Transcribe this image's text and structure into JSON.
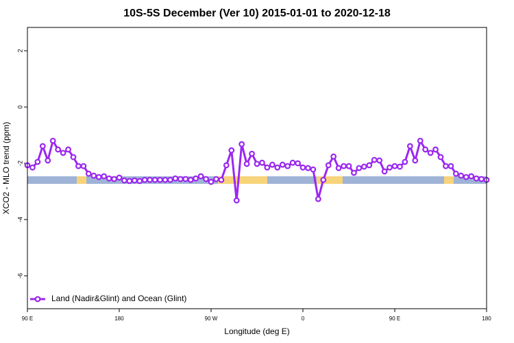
{
  "chart_data": {
    "type": "line",
    "title": "10S-5S December (Ver 10)   2015-01-01 to 2020-12-18",
    "xlabel": "Longitude (deg E)",
    "ylabel": "XCO2 - MLO trend (ppm)",
    "x": [
      90,
      95,
      100,
      105,
      110,
      115,
      120,
      125,
      130,
      135,
      140,
      145,
      150,
      155,
      160,
      165,
      170,
      175,
      180,
      185,
      190,
      195,
      200,
      205,
      210,
      215,
      220,
      225,
      230,
      235,
      240,
      245,
      250,
      255,
      260,
      265,
      270,
      275,
      280,
      285,
      290,
      295,
      300,
      305,
      310,
      315,
      320,
      325,
      330,
      335,
      340,
      345,
      350,
      355,
      360,
      365,
      370,
      375,
      380,
      385,
      390,
      395,
      400,
      405,
      410,
      415,
      420,
      425,
      430,
      435,
      440,
      445,
      450,
      455,
      460,
      465,
      470,
      475,
      480,
      485,
      490,
      495,
      500,
      505,
      510,
      515,
      520,
      525,
      530,
      535,
      540
    ],
    "series": [
      {
        "name": "Land (Nadir&Glint) and Ocean (Glint)",
        "color": "#9b27f0",
        "values": [
          -2.07,
          -2.15,
          -1.95,
          -1.39,
          -1.9,
          -1.2,
          -1.51,
          -1.63,
          -1.51,
          -1.78,
          -2.1,
          -2.1,
          -2.37,
          -2.44,
          -2.49,
          -2.46,
          -2.54,
          -2.56,
          -2.51,
          -2.61,
          -2.63,
          -2.61,
          -2.63,
          -2.59,
          -2.59,
          -2.59,
          -2.59,
          -2.59,
          -2.59,
          -2.54,
          -2.56,
          -2.56,
          -2.59,
          -2.54,
          -2.46,
          -2.56,
          -2.66,
          -2.56,
          -2.59,
          -2.07,
          -1.54,
          -3.32,
          -1.32,
          -2.02,
          -1.66,
          -2.02,
          -1.98,
          -2.15,
          -2.05,
          -2.15,
          -2.05,
          -2.1,
          -1.98,
          -2.0,
          -2.15,
          -2.17,
          -2.22,
          -3.27,
          -2.59,
          -2.07,
          -1.76,
          -2.17,
          -2.1,
          -2.1,
          -2.34,
          -2.17,
          -2.12,
          -2.07,
          -1.88,
          -1.9,
          -2.29,
          -2.15,
          -2.1,
          -2.12,
          -1.95,
          -1.39,
          -1.9,
          -1.2,
          -1.51,
          -1.63,
          -1.51,
          -1.78,
          -2.1,
          -2.1,
          -2.37,
          -2.44,
          -2.49,
          -2.46,
          -2.54,
          -2.56,
          -2.59
        ]
      }
    ],
    "xlim": [
      90,
      540
    ],
    "xticks": [
      {
        "value": 90,
        "label": "90 E"
      },
      180,
      {
        "value": 270,
        "label": "90 W"
      },
      {
        "value": 360,
        "label": "0"
      },
      {
        "value": 450,
        "label": "90 E"
      },
      {
        "value": 540,
        "label": "180"
      }
    ],
    "ylim": [
      -7.17,
      2.83
    ],
    "yticks": [
      -6,
      -4,
      -2,
      0,
      2
    ],
    "legend": "lower left"
  }
}
